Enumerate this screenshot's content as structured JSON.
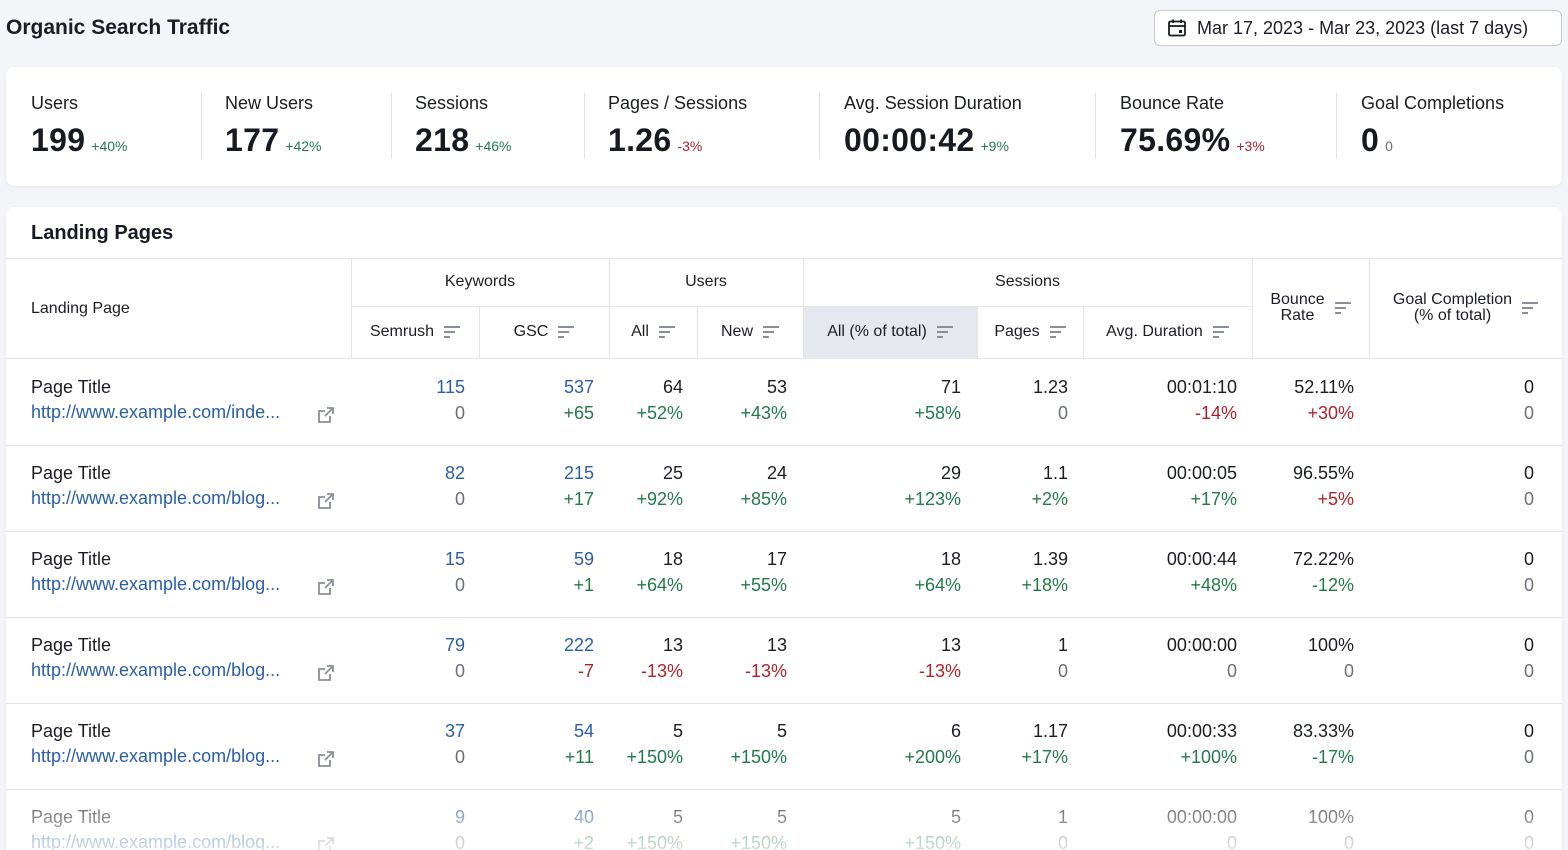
{
  "header": {
    "title": "Organic Search Traffic",
    "date_range": "Mar 17, 2023 - Mar 23, 2023 (last 7 days)",
    "calendar_icon": "calendar-icon"
  },
  "kpis": [
    {
      "label": "Users",
      "value": "199",
      "delta": "+40%",
      "trend": "pos"
    },
    {
      "label": "New Users",
      "value": "177",
      "delta": "+42%",
      "trend": "pos"
    },
    {
      "label": "Sessions",
      "value": "218",
      "delta": "+46%",
      "trend": "pos"
    },
    {
      "label": "Pages / Sessions",
      "value": "1.26",
      "delta": "-3%",
      "trend": "neg"
    },
    {
      "label": "Avg. Session Duration",
      "value": "00:00:42",
      "delta": "+9%",
      "trend": "pos"
    },
    {
      "label": "Bounce Rate",
      "value": "75.69%",
      "delta": "+3%",
      "trend": "neg"
    },
    {
      "label": "Goal Completions",
      "value": "0",
      "delta": "0",
      "trend": "neutral"
    }
  ],
  "table": {
    "title": "Landing Pages",
    "group_headers": {
      "landing_page": "Landing Page",
      "keywords": "Keywords",
      "users": "Users",
      "sessions": "Sessions",
      "bounce_rate_1": "Bounce",
      "bounce_rate_2": "Rate",
      "goal_1": "Goal Completion",
      "goal_2": "(% of total)"
    },
    "sub_headers": {
      "semrush": "Semrush",
      "gsc": "GSC",
      "all": "All",
      "new": "New",
      "sessions_all": "All (% of total)",
      "pages": "Pages",
      "avg_duration": "Avg. Duration"
    },
    "rows": [
      {
        "title": "Page Title",
        "url": "http://www.example.com/inde...",
        "semrush": "115",
        "semrush_d": "0",
        "gsc": "537",
        "gsc_d": "+65",
        "users": "64",
        "users_d": "+52%",
        "new": "53",
        "new_d": "+43%",
        "sessions": "71",
        "sessions_d": "+58%",
        "pages": "1.23",
        "pages_d": "0",
        "duration": "00:01:10",
        "duration_d": "-14%",
        "bounce": "52.11%",
        "bounce_d": "+30%",
        "goal": "0",
        "goal_d": "0",
        "trend": {
          "gsc_d": "pos",
          "users_d": "pos",
          "new_d": "pos",
          "sessions_d": "pos",
          "pages_d": "neutral",
          "duration_d": "neg",
          "bounce_d": "neg"
        }
      },
      {
        "title": "Page Title",
        "url": "http://www.example.com/blog...",
        "semrush": "82",
        "semrush_d": "0",
        "gsc": "215",
        "gsc_d": "+17",
        "users": "25",
        "users_d": "+92%",
        "new": "24",
        "new_d": "+85%",
        "sessions": "29",
        "sessions_d": "+123%",
        "pages": "1.1",
        "pages_d": "+2%",
        "duration": "00:00:05",
        "duration_d": "+17%",
        "bounce": "96.55%",
        "bounce_d": "+5%",
        "goal": "0",
        "goal_d": "0",
        "trend": {
          "gsc_d": "pos",
          "users_d": "pos",
          "new_d": "pos",
          "sessions_d": "pos",
          "pages_d": "pos",
          "duration_d": "pos",
          "bounce_d": "neg"
        }
      },
      {
        "title": "Page Title",
        "url": "http://www.example.com/blog...",
        "semrush": "15",
        "semrush_d": "0",
        "gsc": "59",
        "gsc_d": "+1",
        "users": "18",
        "users_d": "+64%",
        "new": "17",
        "new_d": "+55%",
        "sessions": "18",
        "sessions_d": "+64%",
        "pages": "1.39",
        "pages_d": "+18%",
        "duration": "00:00:44",
        "duration_d": "+48%",
        "bounce": "72.22%",
        "bounce_d": "-12%",
        "goal": "0",
        "goal_d": "0",
        "trend": {
          "gsc_d": "pos",
          "users_d": "pos",
          "new_d": "pos",
          "sessions_d": "pos",
          "pages_d": "pos",
          "duration_d": "pos",
          "bounce_d": "pos"
        }
      },
      {
        "title": "Page Title",
        "url": "http://www.example.com/blog...",
        "semrush": "79",
        "semrush_d": "0",
        "gsc": "222",
        "gsc_d": "-7",
        "users": "13",
        "users_d": "-13%",
        "new": "13",
        "new_d": "-13%",
        "sessions": "13",
        "sessions_d": "-13%",
        "pages": "1",
        "pages_d": "0",
        "duration": "00:00:00",
        "duration_d": "0",
        "bounce": "100%",
        "bounce_d": "0",
        "goal": "0",
        "goal_d": "0",
        "trend": {
          "gsc_d": "neg",
          "users_d": "neg",
          "new_d": "neg",
          "sessions_d": "neg",
          "pages_d": "neutral",
          "duration_d": "neutral",
          "bounce_d": "neutral"
        }
      },
      {
        "title": "Page Title",
        "url": "http://www.example.com/blog...",
        "semrush": "37",
        "semrush_d": "0",
        "gsc": "54",
        "gsc_d": "+11",
        "users": "5",
        "users_d": "+150%",
        "new": "5",
        "new_d": "+150%",
        "sessions": "6",
        "sessions_d": "+200%",
        "pages": "1.17",
        "pages_d": "+17%",
        "duration": "00:00:33",
        "duration_d": "+100%",
        "bounce": "83.33%",
        "bounce_d": "-17%",
        "goal": "0",
        "goal_d": "0",
        "trend": {
          "gsc_d": "pos",
          "users_d": "pos",
          "new_d": "pos",
          "sessions_d": "pos",
          "pages_d": "pos",
          "duration_d": "pos",
          "bounce_d": "pos"
        }
      },
      {
        "title": "Page Title",
        "url": "http://www.example.com/blog...",
        "semrush": "9",
        "semrush_d": "0",
        "gsc": "40",
        "gsc_d": "+2",
        "users": "5",
        "users_d": "+150%",
        "new": "5",
        "new_d": "+150%",
        "sessions": "5",
        "sessions_d": "+150%",
        "pages": "1",
        "pages_d": "0",
        "duration": "00:00:00",
        "duration_d": "0",
        "bounce": "100%",
        "bounce_d": "0",
        "goal": "0",
        "goal_d": "0",
        "trend": {
          "gsc_d": "pos",
          "users_d": "pos",
          "new_d": "pos",
          "sessions_d": "pos",
          "pages_d": "neutral",
          "duration_d": "neutral",
          "bounce_d": "neutral"
        }
      }
    ]
  },
  "colors": {
    "positive": "#217a49",
    "negative": "#b0222b",
    "link": "#2a5ea7",
    "selected_header": "#e6e8ef"
  }
}
